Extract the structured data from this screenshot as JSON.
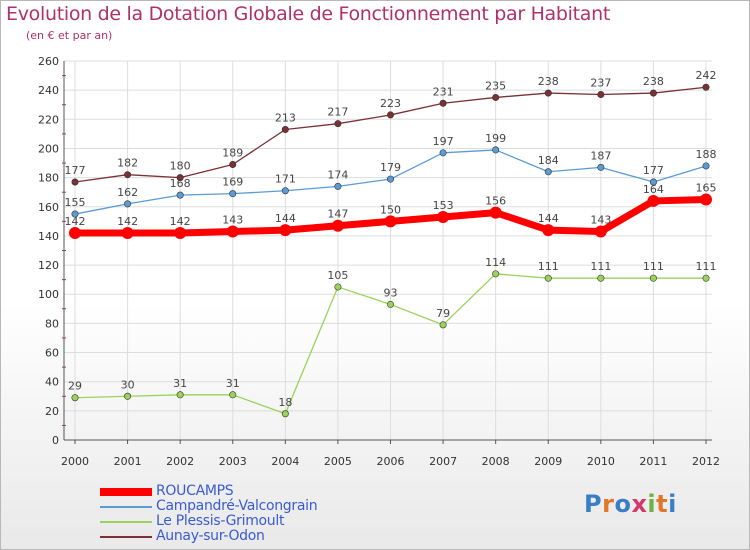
{
  "header": {
    "title": "Evolution de la Dotation Globale de Fonctionnement par Habitant",
    "subtitle": "(en € et par an)"
  },
  "brand": {
    "text": "Proxiti"
  },
  "colors": {
    "title": "#b0306b",
    "grid": "#dddddd",
    "axis": "#555555",
    "tick": "#b0306b"
  },
  "chart_data": {
    "type": "line",
    "title": "Evolution de la Dotation Globale de Fonctionnement par Habitant",
    "subtitle": "(en € et par an)",
    "xlabel": "",
    "ylabel": "",
    "ylim": [
      0,
      260
    ],
    "yticks": [
      0,
      20,
      40,
      60,
      80,
      100,
      120,
      140,
      160,
      180,
      200,
      220,
      240,
      260
    ],
    "categories": [
      "2000",
      "2001",
      "2002",
      "2003",
      "2004",
      "2005",
      "2006",
      "2007",
      "2008",
      "2009",
      "2010",
      "2011",
      "2012"
    ],
    "grid": true,
    "legend_position": "bottom-left",
    "series": [
      {
        "name": "ROUCAMPS",
        "color": "#ff0000",
        "values": [
          142,
          142,
          142,
          143,
          144,
          147,
          150,
          153,
          156,
          144,
          143,
          164,
          165
        ],
        "bold": true
      },
      {
        "name": "Campandré-Valcongrain",
        "color": "#5b9bd5",
        "values": [
          155,
          162,
          168,
          169,
          171,
          174,
          179,
          197,
          199,
          184,
          187,
          177,
          188
        ]
      },
      {
        "name": "Le Plessis-Grimoult",
        "color": "#99d35a",
        "values": [
          29,
          30,
          31,
          31,
          18,
          105,
          93,
          79,
          114,
          111,
          111,
          111,
          111
        ]
      },
      {
        "name": "Aunay-sur-Odon",
        "color": "#7a3035",
        "values": [
          177,
          182,
          180,
          189,
          213,
          217,
          223,
          231,
          235,
          238,
          237,
          238,
          242
        ]
      }
    ]
  }
}
